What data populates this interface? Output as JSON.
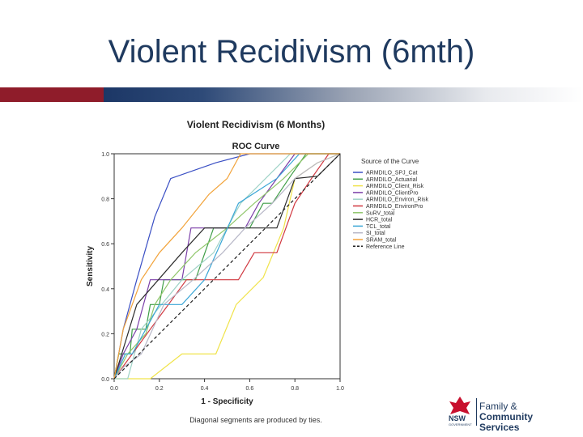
{
  "slide": {
    "title": "Violent Recidivism (6mth)"
  },
  "chart_data": {
    "type": "line",
    "figure_title": "Violent Recidivism (6 Months)",
    "title": "ROC Curve",
    "xlabel": "1 - Specificity",
    "ylabel": "Sensitivity",
    "xlim": [
      0,
      1
    ],
    "ylim": [
      0,
      1
    ],
    "x_ticks": [
      "0.0",
      "0.2",
      "0.4",
      "0.6",
      "0.8",
      "1.0"
    ],
    "y_ticks": [
      "0.0",
      "0.2",
      "0.4",
      "0.6",
      "0.8",
      "1.0"
    ],
    "footnote": "Diagonal segments are produced by ties.",
    "legend_title": "Source of the Curve",
    "series": [
      {
        "name": "ARMDILO_SPJ_Cat",
        "color": "#3a4fc4",
        "points": [
          [
            0,
            0
          ],
          [
            0.02,
            0.11
          ],
          [
            0.04,
            0.22
          ],
          [
            0.1,
            0.44
          ],
          [
            0.18,
            0.72
          ],
          [
            0.25,
            0.89
          ],
          [
            0.45,
            0.96
          ],
          [
            0.6,
            1
          ],
          [
            1,
            1
          ]
        ]
      },
      {
        "name": "ARMDILO_Actuarial",
        "color": "#3f9e47",
        "points": [
          [
            0,
            0
          ],
          [
            0.02,
            0.11
          ],
          [
            0.07,
            0.11
          ],
          [
            0.08,
            0.22
          ],
          [
            0.14,
            0.22
          ],
          [
            0.16,
            0.33
          ],
          [
            0.2,
            0.33
          ],
          [
            0.22,
            0.44
          ],
          [
            0.36,
            0.44
          ],
          [
            0.44,
            0.67
          ],
          [
            0.6,
            0.67
          ],
          [
            0.66,
            0.78
          ],
          [
            0.7,
            0.78
          ],
          [
            0.78,
            0.9
          ],
          [
            0.85,
            1
          ],
          [
            1,
            1
          ]
        ]
      },
      {
        "name": "ARMDILO_Client_Risk",
        "color": "#f0e34a",
        "points": [
          [
            0,
            0
          ],
          [
            0.16,
            0
          ],
          [
            0.3,
            0.11
          ],
          [
            0.45,
            0.11
          ],
          [
            0.54,
            0.33
          ],
          [
            0.66,
            0.45
          ],
          [
            0.75,
            0.67
          ],
          [
            0.8,
            0.89
          ],
          [
            0.9,
            0.96
          ],
          [
            1,
            1
          ]
        ]
      },
      {
        "name": "ARMDILO_ClientPro",
        "color": "#7b3fa8",
        "points": [
          [
            0,
            0
          ],
          [
            0.04,
            0.11
          ],
          [
            0.1,
            0.22
          ],
          [
            0.16,
            0.44
          ],
          [
            0.3,
            0.44
          ],
          [
            0.34,
            0.67
          ],
          [
            0.58,
            0.67
          ],
          [
            0.64,
            0.78
          ],
          [
            0.72,
            0.89
          ],
          [
            0.8,
            1
          ],
          [
            1,
            1
          ]
        ]
      },
      {
        "name": "ARMDILO_Environ_Risk",
        "color": "#9fd3c7",
        "points": [
          [
            0,
            0
          ],
          [
            0.06,
            0
          ],
          [
            0.12,
            0.22
          ],
          [
            0.3,
            0.44
          ],
          [
            0.44,
            0.56
          ],
          [
            0.56,
            0.78
          ],
          [
            0.68,
            0.9
          ],
          [
            0.78,
            1
          ],
          [
            1,
            1
          ]
        ]
      },
      {
        "name": "ARMDILO_EnvironPro",
        "color": "#d0373f",
        "points": [
          [
            0,
            0
          ],
          [
            0.08,
            0.11
          ],
          [
            0.16,
            0.22
          ],
          [
            0.24,
            0.33
          ],
          [
            0.32,
            0.44
          ],
          [
            0.55,
            0.44
          ],
          [
            0.62,
            0.56
          ],
          [
            0.72,
            0.56
          ],
          [
            0.8,
            0.78
          ],
          [
            0.88,
            0.9
          ],
          [
            0.95,
            1
          ],
          [
            1,
            1
          ]
        ]
      },
      {
        "name": "SuRV_total",
        "color": "#8fc66a",
        "points": [
          [
            0,
            0
          ],
          [
            0.06,
            0.11
          ],
          [
            0.14,
            0.2
          ],
          [
            0.18,
            0.33
          ],
          [
            0.25,
            0.44
          ],
          [
            0.36,
            0.56
          ],
          [
            0.5,
            0.67
          ],
          [
            0.62,
            0.78
          ],
          [
            0.75,
            0.89
          ],
          [
            0.86,
            1
          ],
          [
            1,
            1
          ]
        ]
      },
      {
        "name": "HCR_total",
        "color": "#2b2b2b",
        "points": [
          [
            0,
            0
          ],
          [
            0.1,
            0.33
          ],
          [
            0.3,
            0.56
          ],
          [
            0.4,
            0.67
          ],
          [
            0.72,
            0.67
          ],
          [
            0.8,
            0.89
          ],
          [
            0.9,
            0.9
          ],
          [
            1,
            1
          ]
        ]
      },
      {
        "name": "TCL_total",
        "color": "#3aa6d6",
        "points": [
          [
            0,
            0
          ],
          [
            0.05,
            0.11
          ],
          [
            0.08,
            0.11
          ],
          [
            0.2,
            0.33
          ],
          [
            0.3,
            0.33
          ],
          [
            0.4,
            0.44
          ],
          [
            0.55,
            0.78
          ],
          [
            0.72,
            0.89
          ],
          [
            0.82,
            1
          ],
          [
            1,
            1
          ]
        ]
      },
      {
        "name": "SI_total",
        "color": "#b7b7c7",
        "points": [
          [
            0,
            0
          ],
          [
            0.04,
            0.05
          ],
          [
            0.12,
            0.11
          ],
          [
            0.22,
            0.33
          ],
          [
            0.35,
            0.44
          ],
          [
            0.48,
            0.56
          ],
          [
            0.58,
            0.67
          ],
          [
            0.7,
            0.78
          ],
          [
            0.8,
            0.89
          ],
          [
            0.9,
            0.96
          ],
          [
            1,
            1
          ]
        ]
      },
      {
        "name": "SRAM_total",
        "color": "#f2a33a",
        "points": [
          [
            0,
            0
          ],
          [
            0.04,
            0.22
          ],
          [
            0.12,
            0.44
          ],
          [
            0.2,
            0.56
          ],
          [
            0.3,
            0.67
          ],
          [
            0.42,
            0.82
          ],
          [
            0.5,
            0.89
          ],
          [
            0.56,
            1
          ],
          [
            1,
            1
          ]
        ]
      },
      {
        "name": "Reference Line",
        "color": "#1e1e1e",
        "dashed": true,
        "points": [
          [
            0,
            0
          ],
          [
            1,
            1
          ]
        ]
      }
    ]
  },
  "logo": {
    "mark": "NSW",
    "government": "GOVERNMENT",
    "line1": "Family &",
    "line2": "Community Services"
  },
  "colors": {
    "title": "#1f3a5f",
    "bar_red": "#8f1c2a",
    "bar_blue": "#1c3766"
  }
}
